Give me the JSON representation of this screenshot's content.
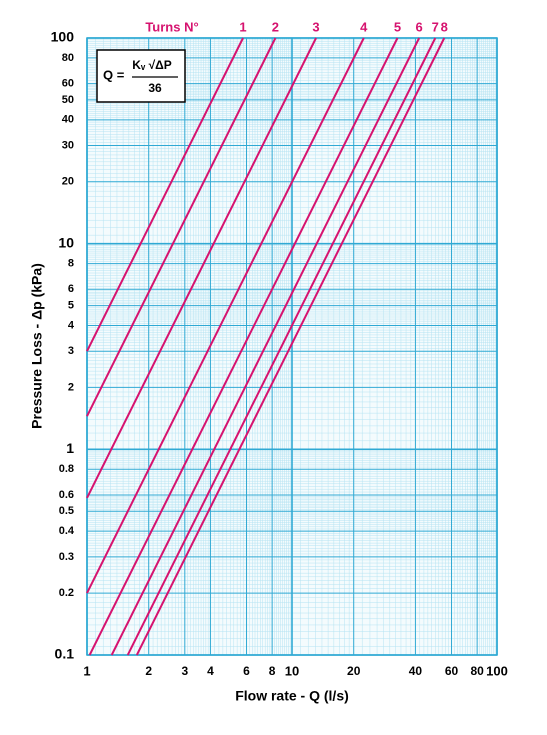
{
  "chart_data": {
    "type": "line",
    "log_x": true,
    "log_y": true,
    "grid": true,
    "x_label": "Flow rate - Q (l/s)",
    "y_label": "Pressure Loss  - Δp (kPa)",
    "legend_title": "Turns N°",
    "formula": {
      "lhs": "Q =",
      "numerator": "Kᵥ √ΔP",
      "denominator": "36"
    },
    "xlim": [
      1,
      100
    ],
    "ylim": [
      0.1,
      100
    ],
    "xticks": [
      1,
      2,
      3,
      4,
      6,
      8,
      10,
      20,
      40,
      60,
      80,
      100
    ],
    "yticks": [
      0.1,
      0.2,
      0.3,
      0.4,
      0.5,
      0.6,
      0.8,
      1,
      2,
      3,
      4,
      5,
      6,
      8,
      10,
      20,
      30,
      40,
      50,
      60,
      80,
      100
    ],
    "series": [
      {
        "name": "1",
        "color": "#d6136f",
        "x": [
          1,
          5.77
        ],
        "values": [
          3,
          100
        ]
      },
      {
        "name": "2",
        "color": "#d6136f",
        "x": [
          1,
          8.3
        ],
        "values": [
          1.45,
          100
        ]
      },
      {
        "name": "3",
        "color": "#d6136f",
        "x": [
          1,
          13.1
        ],
        "values": [
          0.58,
          100
        ]
      },
      {
        "name": "4",
        "color": "#d6136f",
        "x": [
          1,
          22.4
        ],
        "values": [
          0.2,
          100
        ]
      },
      {
        "name": "5",
        "color": "#d6136f",
        "x": [
          1.03,
          32.7
        ],
        "values": [
          0.1,
          100
        ]
      },
      {
        "name": "6",
        "color": "#d6136f",
        "x": [
          1.32,
          41.7
        ],
        "values": [
          0.1,
          100
        ]
      },
      {
        "name": "7",
        "color": "#d6136f",
        "x": [
          1.58,
          50
        ],
        "values": [
          0.1,
          100
        ]
      },
      {
        "name": "8",
        "color": "#d6136f",
        "x": [
          1.75,
          55.3
        ],
        "values": [
          0.1,
          100
        ]
      }
    ]
  }
}
